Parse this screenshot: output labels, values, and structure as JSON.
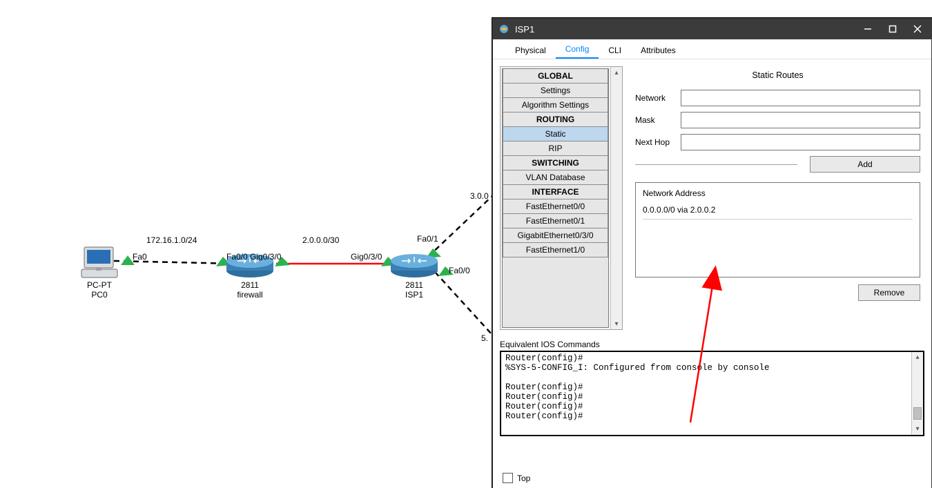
{
  "window": {
    "title": "ISP1",
    "titlebar_bg": "#3b3b3b",
    "tabs": {
      "physical": "Physical",
      "config": "Config",
      "cli": "CLI",
      "attributes": "Attributes"
    },
    "active_tab": "config"
  },
  "tree": {
    "sections": [
      {
        "type": "header",
        "label": "GLOBAL"
      },
      {
        "type": "item",
        "label": "Settings"
      },
      {
        "type": "item",
        "label": "Algorithm Settings"
      },
      {
        "type": "header",
        "label": "ROUTING"
      },
      {
        "type": "item",
        "label": "Static",
        "selected": true
      },
      {
        "type": "item",
        "label": "RIP"
      },
      {
        "type": "header",
        "label": "SWITCHING"
      },
      {
        "type": "item",
        "label": "VLAN Database"
      },
      {
        "type": "header",
        "label": "INTERFACE"
      },
      {
        "type": "item",
        "label": "FastEthernet0/0"
      },
      {
        "type": "item",
        "label": "FastEthernet0/1"
      },
      {
        "type": "item",
        "label": "GigabitEthernet0/3/0"
      },
      {
        "type": "item",
        "label": "FastEthernet1/0"
      }
    ]
  },
  "form": {
    "title": "Static Routes",
    "labels": {
      "network": "Network",
      "mask": "Mask",
      "nexthop": "Next Hop"
    },
    "values": {
      "network": "",
      "mask": "",
      "nexthop": ""
    },
    "add_btn": "Add",
    "routes_header": "Network Address",
    "routes": [
      "0.0.0.0/0 via 2.0.0.2"
    ],
    "remove_btn": "Remove"
  },
  "ios": {
    "label": "Equivalent IOS Commands",
    "lines": [
      "Router(config)#",
      "%SYS-5-CONFIG_I: Configured from console by console",
      "",
      "Router(config)#",
      "Router(config)#",
      "Router(config)#",
      "Router(config)#"
    ]
  },
  "footer": {
    "top_label": "Top"
  },
  "topology": {
    "labels": {
      "subnet1": "172.16.1.0/24",
      "subnet2": "2.0.0.0/30",
      "left_partial": "3.0.0",
      "right_partial": "5.",
      "fa0": "Fa0",
      "fa00_l": "Fa0/0",
      "gig030_l": "Gig0/3/0",
      "gig030_r": "Gig0/3/0",
      "fa01": "Fa0/1",
      "fa00_r": "Fa0/0"
    },
    "devices": {
      "pc": {
        "line1": "PC-PT",
        "line2": "PC0"
      },
      "firewall": {
        "line1": "2811",
        "line2": "firewall"
      },
      "isp1": {
        "line1": "2811",
        "line2": "ISP1"
      }
    },
    "colors": {
      "dash": "#000000",
      "redlink": "#ff0000",
      "tri": "#2bb24c",
      "pc_screen": "#2a6fb5",
      "pc_body": "#d9dde0",
      "router_top": "#5aa3d6",
      "router_bot": "#2f6fa0"
    },
    "arrow": {
      "color": "#ff0000"
    }
  }
}
